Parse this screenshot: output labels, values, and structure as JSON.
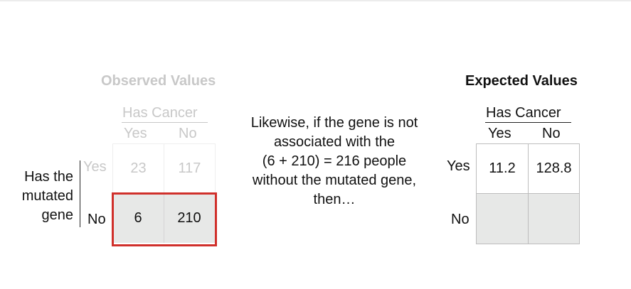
{
  "observed": {
    "title": "Observed Values",
    "col_group": "Has Cancer",
    "col_yes": "Yes",
    "col_no": "No",
    "row_group_line1": "Has the",
    "row_group_line2": "mutated",
    "row_group_line3": "gene",
    "row_yes": "Yes",
    "row_no": "No",
    "cells": {
      "yes_yes": "23",
      "yes_no": "117",
      "no_yes": "6",
      "no_no": "210"
    }
  },
  "explanation": {
    "line1": "Likewise, if the gene is not",
    "line2": "associated with the",
    "line3": "(6 + 210) = 216 people",
    "line4": "without the mutated gene,",
    "line5": "then…"
  },
  "expected": {
    "title": "Expected Values",
    "col_group": "Has Cancer",
    "col_yes": "Yes",
    "col_no": "No",
    "row_yes": "Yes",
    "row_no": "No",
    "cells": {
      "yes_yes": "11.2",
      "yes_no": "128.8",
      "no_yes": "",
      "no_no": ""
    }
  },
  "colors": {
    "highlight": "#d0302b",
    "faded_text": "#c8c8c8",
    "shaded_cell": "#e7e8e7"
  }
}
